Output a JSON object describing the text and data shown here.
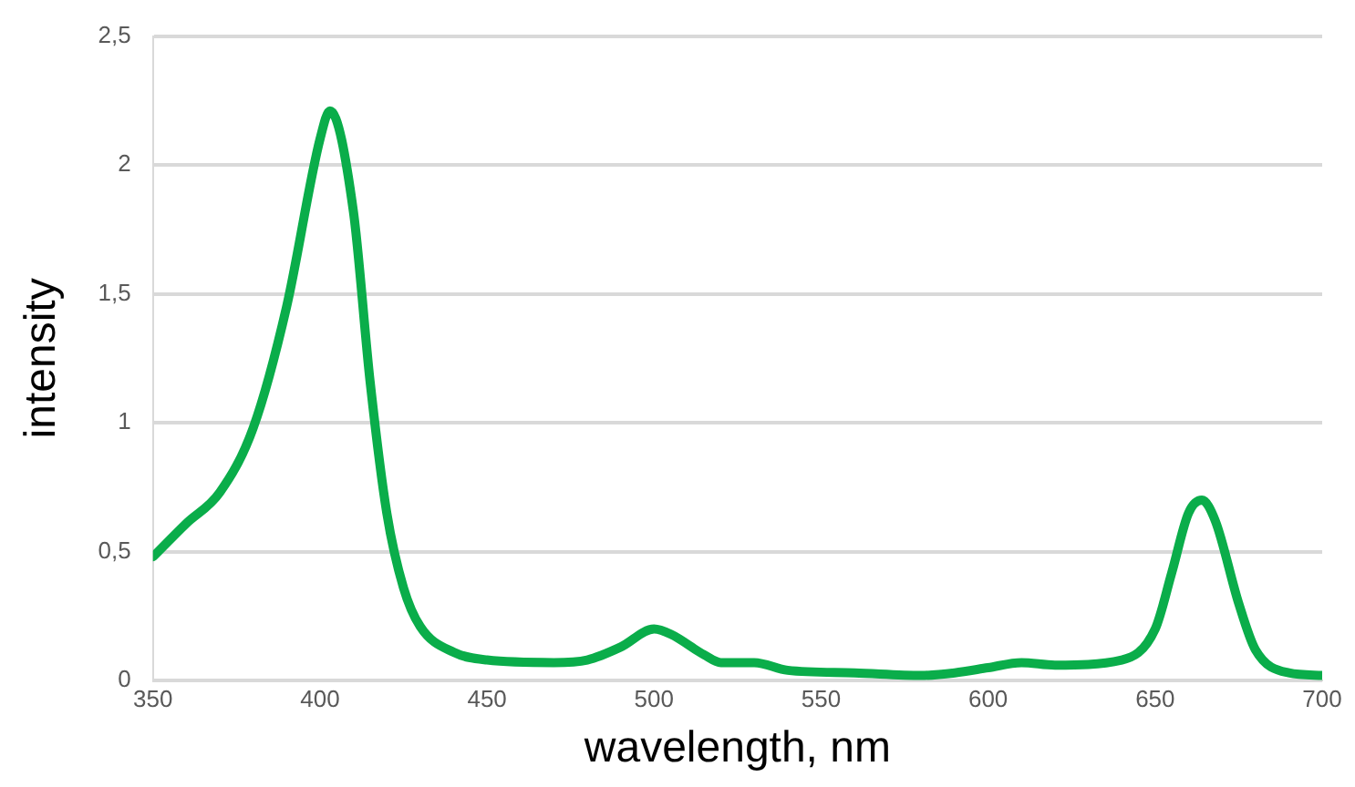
{
  "chart_data": {
    "type": "line",
    "xlabel": "wavelength, nm",
    "ylabel": "intensity",
    "x": [
      350,
      360,
      370,
      380,
      390,
      400,
      403,
      410,
      415,
      420,
      425,
      430,
      440,
      450,
      470,
      480,
      490,
      500,
      505,
      515,
      520,
      530,
      540,
      560,
      580,
      590,
      600,
      610,
      620,
      640,
      650,
      655,
      660,
      664,
      668,
      675,
      680,
      690,
      700
    ],
    "series": [
      {
        "color": "#0aad4a",
        "values": [
          0.48,
          0.61,
          0.73,
          0.98,
          1.45,
          2.1,
          2.21,
          1.82,
          1.16,
          0.65,
          0.36,
          0.21,
          0.11,
          0.08,
          0.07,
          0.08,
          0.13,
          0.2,
          0.18,
          0.1,
          0.07,
          0.07,
          0.04,
          0.03,
          0.02,
          0.03,
          0.05,
          0.07,
          0.06,
          0.08,
          0.2,
          0.42,
          0.65,
          0.7,
          0.62,
          0.3,
          0.12,
          0.03,
          0.02
        ]
      }
    ],
    "xlim": [
      350,
      700
    ],
    "xticks": [
      350,
      400,
      450,
      500,
      550,
      600,
      650,
      700
    ],
    "ylim": [
      0,
      2.5
    ],
    "yticks": [
      0,
      {
        "value": 0.5,
        "label": "0,5"
      },
      1,
      {
        "value": 1.5,
        "label": "1,5"
      },
      2,
      {
        "value": 2.5,
        "label": "2,5"
      }
    ],
    "grid": "y",
    "legend": false,
    "marker": "none",
    "line_style": "solid"
  }
}
